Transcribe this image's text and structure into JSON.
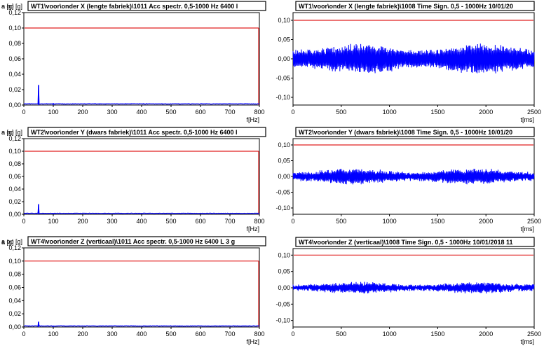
{
  "chart_data": [
    {
      "type": "line",
      "title": "WT1\\voor\\onder X (lengte fabriek)\\1011 Acc spectr. 0,5-1000 Hz 6400 l",
      "ylabel": "a op [g]",
      "xlabel": "f[Hz]",
      "xlim": [
        0,
        800
      ],
      "ylim": [
        0,
        0.12
      ],
      "xticks": [
        "0",
        "100",
        "200",
        "300",
        "400",
        "500",
        "600",
        "700",
        "800"
      ],
      "yticks": [
        "0,00",
        "0,02",
        "0,04",
        "0,06",
        "0,08",
        "0,10",
        "0,12"
      ],
      "threshold": 0.1,
      "kind": "spectrum",
      "peaks": [
        [
          50,
          0.026
        ],
        [
          100,
          0.002
        ]
      ],
      "colors": {
        "signal": "#0000ff",
        "threshold": "#e02020"
      }
    },
    {
      "type": "line",
      "title": "WT1\\voor\\onder X (lengte fabriek)\\1008 Time Sign. 0,5 - 1000Hz 10/01/20",
      "ylabel": "a [g]",
      "xlabel": "t[ms]",
      "xlim": [
        0,
        2500
      ],
      "ylim": [
        -0.12,
        0.12
      ],
      "xticks": [
        "0",
        "500",
        "1000",
        "1500",
        "2000",
        "2500"
      ],
      "yticks": [
        "-0,10",
        "-0,05",
        "0,00",
        "0,05",
        "0,10"
      ],
      "threshold": 0.1,
      "kind": "time",
      "envelope": {
        "base": 0.03,
        "amp": 0.008,
        "period": 1250,
        "phase": 400
      },
      "colors": {
        "signal": "#0000ff",
        "threshold": "#e02020"
      }
    },
    {
      "type": "line",
      "title": "WT2\\voor\\onder Y (dwars fabriek)\\1011 Acc spectr. 0,5-1000 Hz 6400 l",
      "ylabel": "a op [g]",
      "xlabel": "f[Hz]",
      "xlim": [
        0,
        800
      ],
      "ylim": [
        0,
        0.12
      ],
      "xticks": [
        "0",
        "100",
        "200",
        "300",
        "400",
        "500",
        "600",
        "700",
        "800"
      ],
      "yticks": [
        "0,00",
        "0,02",
        "0,04",
        "0,06",
        "0,08",
        "0,10",
        "0,12"
      ],
      "threshold": 0.1,
      "kind": "spectrum",
      "peaks": [
        [
          50,
          0.016
        ],
        [
          100,
          0.001
        ]
      ],
      "colors": {
        "signal": "#0000ff",
        "threshold": "#e02020"
      }
    },
    {
      "type": "line",
      "title": "WT2\\voor\\onder Y (dwars fabriek)\\1008 Time Sign. 0,5 - 1000Hz 10/01/20",
      "ylabel": "a [g]",
      "xlabel": "t[ms]",
      "xlim": [
        0,
        2500
      ],
      "ylim": [
        -0.12,
        0.12
      ],
      "xticks": [
        "0",
        "500",
        "1000",
        "1500",
        "2000",
        "2500"
      ],
      "yticks": [
        "-0,10",
        "-0,05",
        "0,00",
        "0,05",
        "0,10"
      ],
      "threshold": 0.1,
      "kind": "time",
      "envelope": {
        "base": 0.018,
        "amp": 0.006,
        "period": 1250,
        "phase": 300
      },
      "colors": {
        "signal": "#0000ff",
        "threshold": "#e02020"
      }
    },
    {
      "type": "line",
      "title": "WT4\\voor\\onder Z (verticaal)\\1011 Acc spectr. 0,5-1000 Hz 6400 L 3 g",
      "ylabel": "a op [g]",
      "xlabel": "f[Hz]",
      "xlim": [
        0,
        800
      ],
      "ylim": [
        0,
        0.12
      ],
      "xticks": [
        "0",
        "100",
        "200",
        "300",
        "400",
        "500",
        "600",
        "700",
        "800"
      ],
      "yticks": [
        "0,00",
        "0,02",
        "0,04",
        "0,06",
        "0,08",
        "0,10",
        "0,12"
      ],
      "threshold": 0.1,
      "kind": "spectrum",
      "peaks": [
        [
          50,
          0.008
        ],
        [
          100,
          0.0015
        ]
      ],
      "colors": {
        "signal": "#0000ff",
        "threshold": "#e02020"
      }
    },
    {
      "type": "line",
      "title": "WT4\\voor\\onder Z (verticaal)\\1008 Time Sign. 0,5 - 1000Hz 10/01/2018 11",
      "ylabel": "a [g]",
      "xlabel": "t[ms]",
      "xlim": [
        0,
        2500
      ],
      "ylim": [
        -0.12,
        0.12
      ],
      "xticks": [
        "0",
        "500",
        "1000",
        "1500",
        "2000",
        "2500"
      ],
      "yticks": [
        "-0,10",
        "-0,05",
        "0,00",
        "0,05",
        "0,10"
      ],
      "threshold": 0.1,
      "kind": "time",
      "envelope": {
        "base": 0.012,
        "amp": 0.004,
        "period": 1250,
        "phase": 350
      },
      "colors": {
        "signal": "#0000ff",
        "threshold": "#e02020"
      }
    }
  ]
}
